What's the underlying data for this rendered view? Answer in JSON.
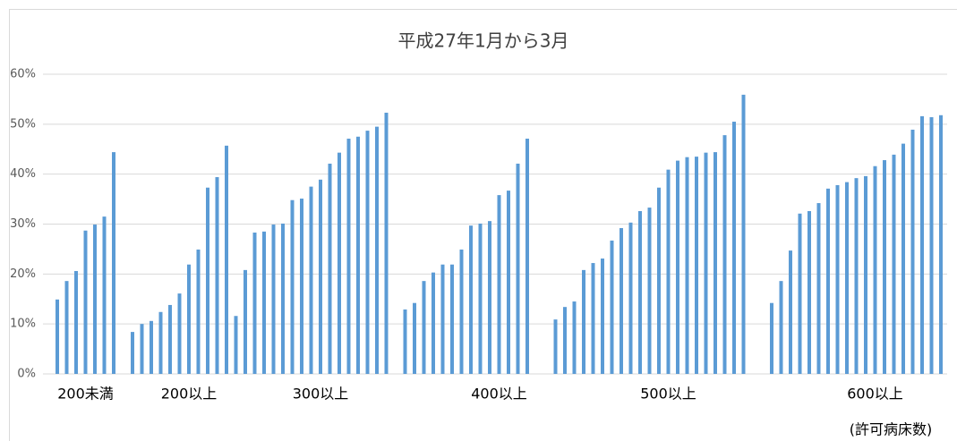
{
  "chart_data": {
    "type": "bar",
    "title": "平成27年1月から3月",
    "x_label": "(許可病床数)",
    "categories": [
      null,
      null,
      null,
      "200未満",
      null,
      null,
      null,
      null,
      null,
      null,
      null,
      null,
      null,
      null,
      "200以上",
      null,
      null,
      null,
      null,
      null,
      null,
      null,
      null,
      null,
      null,
      null,
      null,
      null,
      "300以上",
      null,
      null,
      null,
      null,
      null,
      null,
      null,
      null,
      null,
      null,
      null,
      null,
      null,
      null,
      null,
      null,
      null,
      null,
      "400以上",
      null,
      null,
      null,
      null,
      null,
      null,
      null,
      null,
      null,
      null,
      null,
      null,
      null,
      null,
      null,
      null,
      null,
      "500以上",
      null,
      null,
      null,
      null,
      null,
      null,
      null,
      null,
      null,
      null,
      null,
      null,
      null,
      null,
      null,
      null,
      null,
      null,
      null,
      null,
      null,
      "600以上",
      null,
      null,
      null,
      null,
      null,
      null,
      null
    ],
    "values": [
      14.9,
      18.6,
      20.6,
      28.7,
      29.9,
      31.5,
      44.4,
      null,
      8.4,
      10.0,
      10.6,
      12.4,
      13.8,
      16.1,
      21.9,
      24.9,
      37.3,
      39.4,
      45.7,
      11.6,
      20.8,
      28.3,
      28.5,
      29.9,
      30.1,
      34.8,
      35.1,
      37.5,
      38.9,
      42.1,
      44.3,
      47.1,
      47.5,
      48.7,
      49.5,
      52.3,
      null,
      12.9,
      14.2,
      18.6,
      20.3,
      21.9,
      21.9,
      24.9,
      29.7,
      30.1,
      30.6,
      35.8,
      36.7,
      42.1,
      47.1,
      null,
      null,
      10.9,
      13.4,
      14.5,
      20.8,
      22.2,
      23.1,
      26.7,
      29.2,
      30.3,
      32.6,
      33.3,
      37.3,
      40.9,
      42.7,
      43.4,
      43.5,
      44.3,
      44.4,
      47.8,
      50.5,
      55.9,
      null,
      null,
      14.2,
      18.6,
      24.7,
      32.1,
      32.6,
      34.2,
      37.1,
      37.8,
      38.4,
      39.2,
      39.6,
      41.6,
      42.8,
      43.9,
      46.1,
      48.9,
      51.6,
      51.4,
      51.8
    ],
    "color": "#5b9bd5",
    "ylim": [
      0,
      60
    ],
    "yticks": [
      {
        "value": 0,
        "label": "0%"
      },
      {
        "value": 10,
        "label": "10%"
      },
      {
        "value": 20,
        "label": "20%"
      },
      {
        "value": 30,
        "label": "30%"
      },
      {
        "value": 40,
        "label": "40%"
      },
      {
        "value": 50,
        "label": "50%"
      },
      {
        "value": 60,
        "label": "60%"
      }
    ],
    "grid": true
  }
}
